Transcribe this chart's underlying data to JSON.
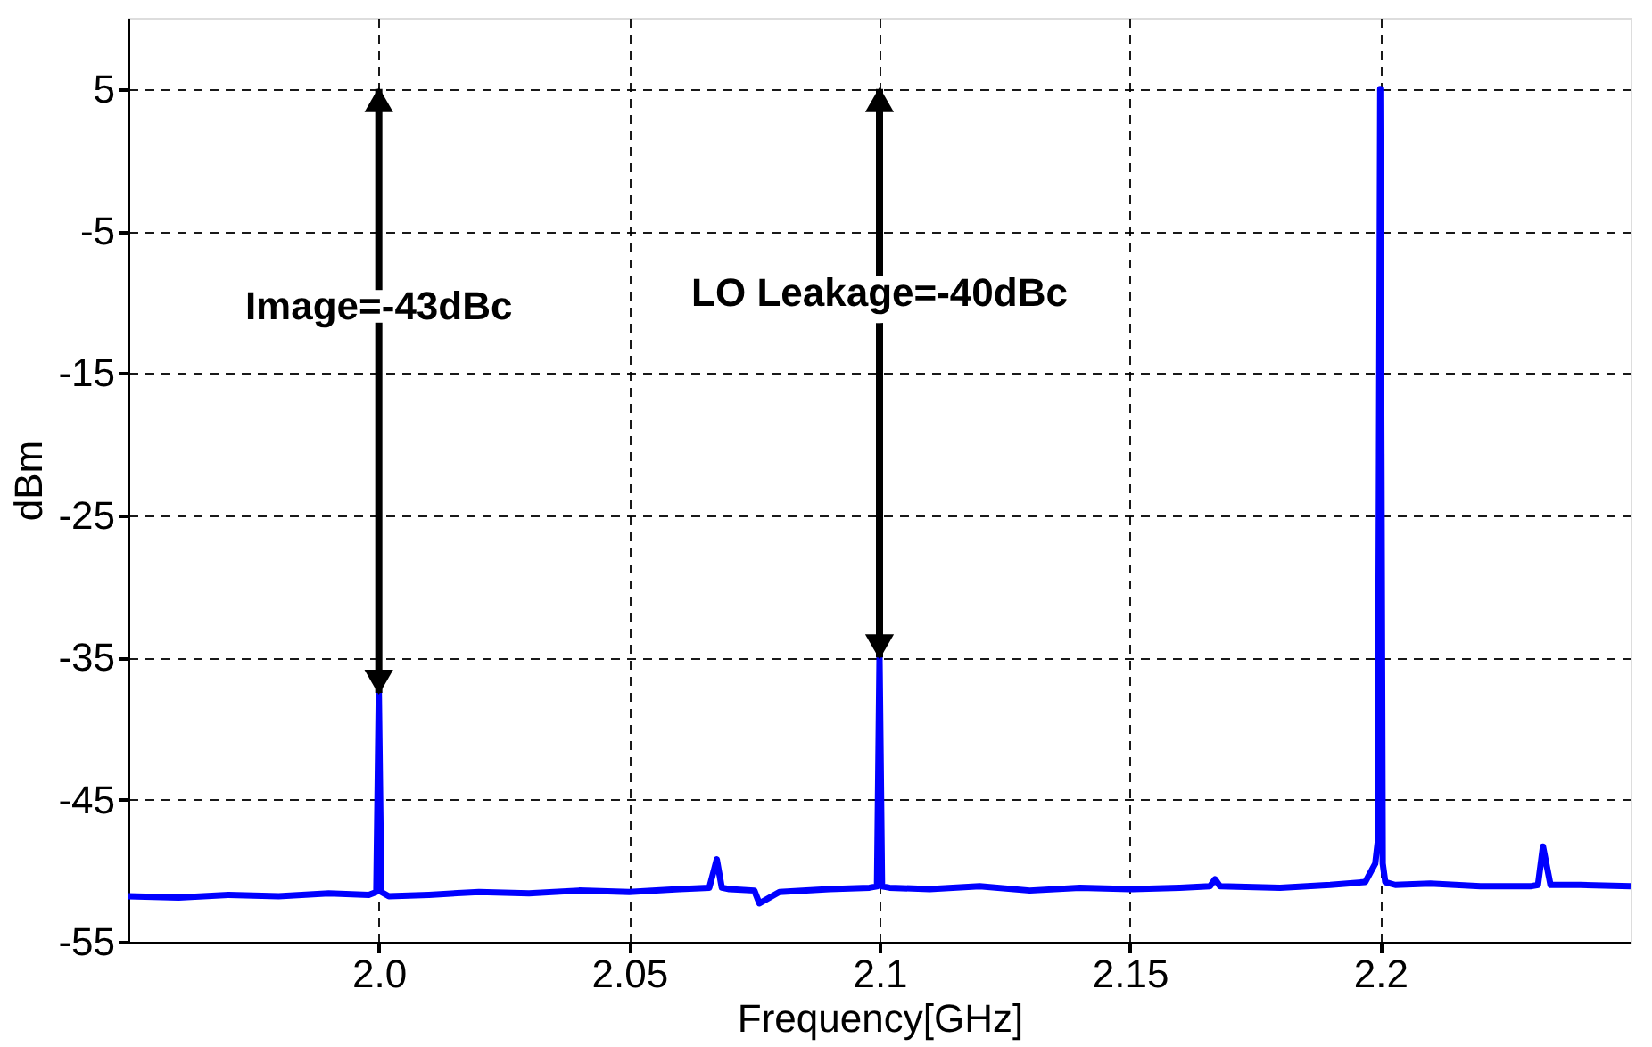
{
  "chart_data": {
    "type": "line",
    "xlabel": "Frequency[GHz]",
    "ylabel": "dBm",
    "x": [
      1.95,
      1.96,
      1.97,
      1.98,
      1.99,
      1.998,
      1.9995,
      2.0,
      2.0005,
      2.002,
      2.01,
      2.02,
      2.03,
      2.04,
      2.05,
      2.06,
      2.066,
      2.0675,
      2.0685,
      2.07,
      2.075,
      2.076,
      2.08,
      2.09,
      2.098,
      2.0995,
      2.1,
      2.1005,
      2.102,
      2.11,
      2.12,
      2.13,
      2.14,
      2.15,
      2.16,
      2.166,
      2.167,
      2.168,
      2.18,
      2.19,
      2.197,
      2.199,
      2.1995,
      2.2,
      2.2005,
      2.201,
      2.203,
      2.21,
      2.22,
      2.23,
      2.2315,
      2.2325,
      2.234,
      2.24,
      2.25
    ],
    "series": [
      {
        "color": "#0000ff",
        "values": [
          -51.8,
          -51.9,
          -51.7,
          -51.8,
          -51.6,
          -51.7,
          -51.5,
          -37.5,
          -51.5,
          -51.8,
          -51.7,
          -51.5,
          -51.6,
          -51.4,
          -51.5,
          -51.3,
          -51.2,
          -49.2,
          -51.2,
          -51.3,
          -51.4,
          -52.3,
          -51.5,
          -51.3,
          -51.2,
          -51.1,
          -35,
          -51.1,
          -51.2,
          -51.3,
          -51.1,
          -51.4,
          -51.2,
          -51.3,
          -51.2,
          -51.1,
          -50.6,
          -51.1,
          -51.2,
          -51,
          -50.8,
          -49.5,
          -48,
          5,
          -49.5,
          -50.8,
          -51,
          -50.9,
          -51.1,
          -51.1,
          -51,
          -48.3,
          -51,
          -51,
          -51.1
        ]
      }
    ],
    "xlim": [
      1.95,
      2.25
    ],
    "ylim": [
      -55,
      10
    ],
    "xticks": [
      {
        "value": 2.0,
        "label": "2.0"
      },
      2.05,
      2.1,
      2.15,
      2.2
    ],
    "yticks": [
      5,
      -5,
      -15,
      -25,
      -35,
      -45,
      -55
    ],
    "grid": true,
    "marker": "none",
    "line_style": "solid",
    "annotations": [
      "Image=-43dBc",
      "LO Leakage=-40dBc"
    ]
  }
}
